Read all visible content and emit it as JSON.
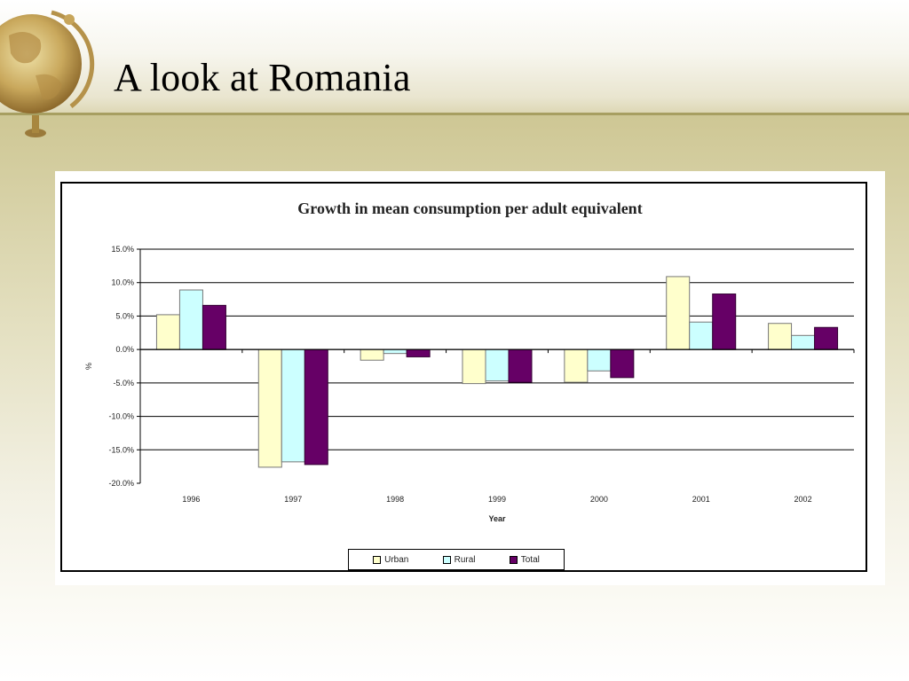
{
  "slide": {
    "title": "A look at Romania"
  },
  "colors": {
    "urban": "#ffffcc",
    "rural": "#ccffff",
    "total": "#660066"
  },
  "chart_data": {
    "type": "bar",
    "title": "Growth in mean consumption per adult equivalent",
    "xlabel": "Year",
    "ylabel": "%",
    "categories": [
      "1996",
      "1997",
      "1998",
      "1999",
      "2000",
      "2001",
      "2002"
    ],
    "series": [
      {
        "name": "Urban",
        "values": [
          5.2,
          -17.6,
          -1.6,
          -5.1,
          -4.9,
          10.9,
          3.9
        ]
      },
      {
        "name": "Rural",
        "values": [
          8.9,
          -16.8,
          -0.6,
          -4.7,
          -3.2,
          4.1,
          2.1
        ]
      },
      {
        "name": "Total",
        "values": [
          6.6,
          -17.2,
          -1.1,
          -4.9,
          -4.2,
          8.3,
          3.3
        ]
      }
    ],
    "ylim": [
      -20,
      15
    ],
    "yticks": [
      15,
      10,
      5,
      0,
      -5,
      -10,
      -15,
      -20
    ],
    "ytick_labels": [
      "15.0%",
      "10.0%",
      "5.0%",
      "0.0%",
      "-5.0%",
      "-10.0%",
      "-15.0%",
      "-20.0%"
    ],
    "grid": true,
    "legend_position": "bottom"
  }
}
